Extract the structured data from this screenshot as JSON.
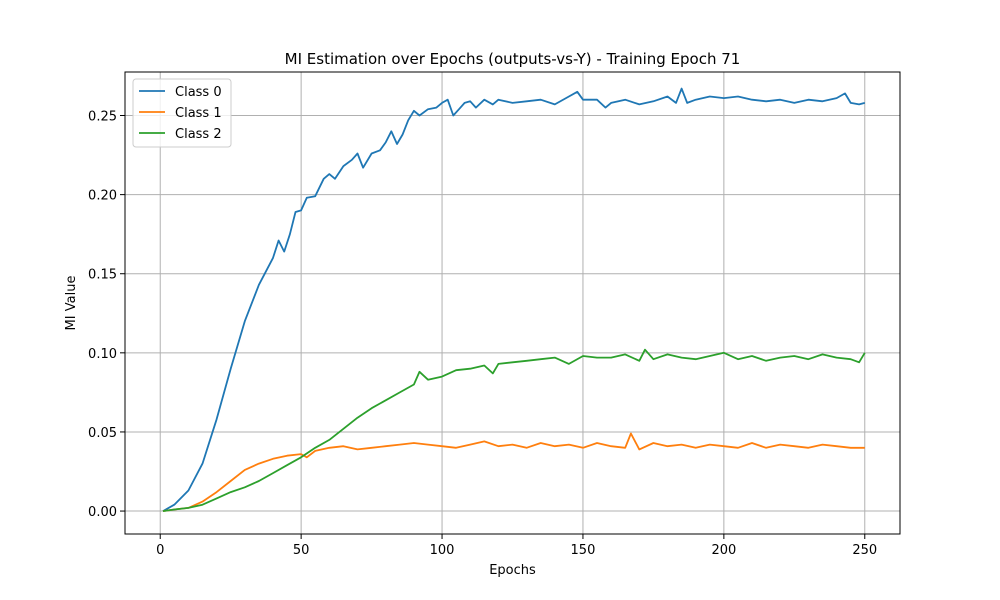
{
  "chart_data": {
    "type": "line",
    "title": "MI Estimation over Epochs (outputs-vs-Y) - Training Epoch 71",
    "xlabel": "Epochs",
    "ylabel": "MI Value",
    "xlim": [
      -12.5,
      262.5
    ],
    "ylim": [
      -0.0145,
      0.2775
    ],
    "xticks": [
      0,
      50,
      100,
      150,
      200,
      250
    ],
    "xtick_labels": [
      "0",
      "50",
      "100",
      "150",
      "200",
      "250"
    ],
    "yticks": [
      0.0,
      0.05,
      0.1,
      0.15,
      0.2,
      0.25
    ],
    "ytick_labels": [
      "0.00",
      "0.05",
      "0.10",
      "0.15",
      "0.20",
      "0.25"
    ],
    "grid": true,
    "legend_position": "top-left",
    "series": [
      {
        "name": "Class 0",
        "color": "#1f77b4",
        "points": [
          [
            1,
            0.0
          ],
          [
            5,
            0.004
          ],
          [
            10,
            0.013
          ],
          [
            15,
            0.03
          ],
          [
            20,
            0.058
          ],
          [
            25,
            0.09
          ],
          [
            30,
            0.12
          ],
          [
            35,
            0.143
          ],
          [
            40,
            0.16
          ],
          [
            42,
            0.171
          ],
          [
            44,
            0.164
          ],
          [
            46,
            0.175
          ],
          [
            48,
            0.189
          ],
          [
            50,
            0.19
          ],
          [
            52,
            0.198
          ],
          [
            55,
            0.199
          ],
          [
            58,
            0.21
          ],
          [
            60,
            0.213
          ],
          [
            62,
            0.21
          ],
          [
            65,
            0.218
          ],
          [
            68,
            0.222
          ],
          [
            70,
            0.226
          ],
          [
            72,
            0.217
          ],
          [
            75,
            0.226
          ],
          [
            78,
            0.228
          ],
          [
            80,
            0.233
          ],
          [
            82,
            0.24
          ],
          [
            84,
            0.232
          ],
          [
            86,
            0.238
          ],
          [
            88,
            0.247
          ],
          [
            90,
            0.253
          ],
          [
            92,
            0.25
          ],
          [
            95,
            0.254
          ],
          [
            98,
            0.255
          ],
          [
            100,
            0.258
          ],
          [
            102,
            0.26
          ],
          [
            104,
            0.25
          ],
          [
            106,
            0.254
          ],
          [
            108,
            0.258
          ],
          [
            110,
            0.259
          ],
          [
            112,
            0.255
          ],
          [
            115,
            0.26
          ],
          [
            118,
            0.257
          ],
          [
            120,
            0.26
          ],
          [
            125,
            0.258
          ],
          [
            130,
            0.259
          ],
          [
            135,
            0.26
          ],
          [
            140,
            0.257
          ],
          [
            145,
            0.262
          ],
          [
            148,
            0.265
          ],
          [
            150,
            0.26
          ],
          [
            155,
            0.26
          ],
          [
            158,
            0.255
          ],
          [
            160,
            0.258
          ],
          [
            165,
            0.26
          ],
          [
            170,
            0.257
          ],
          [
            175,
            0.259
          ],
          [
            180,
            0.262
          ],
          [
            183,
            0.258
          ],
          [
            185,
            0.267
          ],
          [
            187,
            0.258
          ],
          [
            190,
            0.26
          ],
          [
            195,
            0.262
          ],
          [
            200,
            0.261
          ],
          [
            205,
            0.262
          ],
          [
            210,
            0.26
          ],
          [
            215,
            0.259
          ],
          [
            220,
            0.26
          ],
          [
            225,
            0.258
          ],
          [
            230,
            0.26
          ],
          [
            235,
            0.259
          ],
          [
            240,
            0.261
          ],
          [
            243,
            0.264
          ],
          [
            245,
            0.258
          ],
          [
            248,
            0.257
          ],
          [
            250,
            0.258
          ]
        ]
      },
      {
        "name": "Class 1",
        "color": "#ff7f0e",
        "points": [
          [
            1,
            0.0
          ],
          [
            5,
            0.001
          ],
          [
            10,
            0.002
          ],
          [
            15,
            0.006
          ],
          [
            20,
            0.012
          ],
          [
            25,
            0.019
          ],
          [
            30,
            0.026
          ],
          [
            35,
            0.03
          ],
          [
            40,
            0.033
          ],
          [
            45,
            0.035
          ],
          [
            50,
            0.036
          ],
          [
            52,
            0.034
          ],
          [
            55,
            0.038
          ],
          [
            60,
            0.04
          ],
          [
            65,
            0.041
          ],
          [
            70,
            0.039
          ],
          [
            75,
            0.04
          ],
          [
            80,
            0.041
          ],
          [
            85,
            0.042
          ],
          [
            90,
            0.043
          ],
          [
            95,
            0.042
          ],
          [
            100,
            0.041
          ],
          [
            105,
            0.04
          ],
          [
            110,
            0.042
          ],
          [
            115,
            0.044
          ],
          [
            120,
            0.041
          ],
          [
            125,
            0.042
          ],
          [
            130,
            0.04
          ],
          [
            135,
            0.043
          ],
          [
            140,
            0.041
          ],
          [
            145,
            0.042
          ],
          [
            150,
            0.04
          ],
          [
            155,
            0.043
          ],
          [
            160,
            0.041
          ],
          [
            165,
            0.04
          ],
          [
            167,
            0.049
          ],
          [
            170,
            0.039
          ],
          [
            175,
            0.043
          ],
          [
            180,
            0.041
          ],
          [
            185,
            0.042
          ],
          [
            190,
            0.04
          ],
          [
            195,
            0.042
          ],
          [
            200,
            0.041
          ],
          [
            205,
            0.04
          ],
          [
            210,
            0.043
          ],
          [
            215,
            0.04
          ],
          [
            220,
            0.042
          ],
          [
            225,
            0.041
          ],
          [
            230,
            0.04
          ],
          [
            235,
            0.042
          ],
          [
            240,
            0.041
          ],
          [
            245,
            0.04
          ],
          [
            250,
            0.04
          ]
        ]
      },
      {
        "name": "Class 2",
        "color": "#2ca02c",
        "points": [
          [
            1,
            0.0
          ],
          [
            5,
            0.001
          ],
          [
            10,
            0.002
          ],
          [
            15,
            0.004
          ],
          [
            20,
            0.008
          ],
          [
            25,
            0.012
          ],
          [
            30,
            0.015
          ],
          [
            35,
            0.019
          ],
          [
            40,
            0.024
          ],
          [
            45,
            0.029
          ],
          [
            50,
            0.034
          ],
          [
            55,
            0.04
          ],
          [
            60,
            0.045
          ],
          [
            65,
            0.052
          ],
          [
            70,
            0.059
          ],
          [
            75,
            0.065
          ],
          [
            80,
            0.07
          ],
          [
            85,
            0.075
          ],
          [
            90,
            0.08
          ],
          [
            92,
            0.088
          ],
          [
            95,
            0.083
          ],
          [
            100,
            0.085
          ],
          [
            105,
            0.089
          ],
          [
            110,
            0.09
          ],
          [
            115,
            0.092
          ],
          [
            118,
            0.087
          ],
          [
            120,
            0.093
          ],
          [
            125,
            0.094
          ],
          [
            130,
            0.095
          ],
          [
            135,
            0.096
          ],
          [
            140,
            0.097
          ],
          [
            145,
            0.093
          ],
          [
            150,
            0.098
          ],
          [
            155,
            0.097
          ],
          [
            160,
            0.097
          ],
          [
            165,
            0.099
          ],
          [
            170,
            0.095
          ],
          [
            172,
            0.102
          ],
          [
            175,
            0.096
          ],
          [
            180,
            0.099
          ],
          [
            185,
            0.097
          ],
          [
            190,
            0.096
          ],
          [
            195,
            0.098
          ],
          [
            200,
            0.1
          ],
          [
            205,
            0.096
          ],
          [
            210,
            0.098
          ],
          [
            215,
            0.095
          ],
          [
            220,
            0.097
          ],
          [
            225,
            0.098
          ],
          [
            230,
            0.096
          ],
          [
            235,
            0.099
          ],
          [
            240,
            0.097
          ],
          [
            245,
            0.096
          ],
          [
            248,
            0.094
          ],
          [
            250,
            0.1
          ]
        ]
      }
    ]
  }
}
